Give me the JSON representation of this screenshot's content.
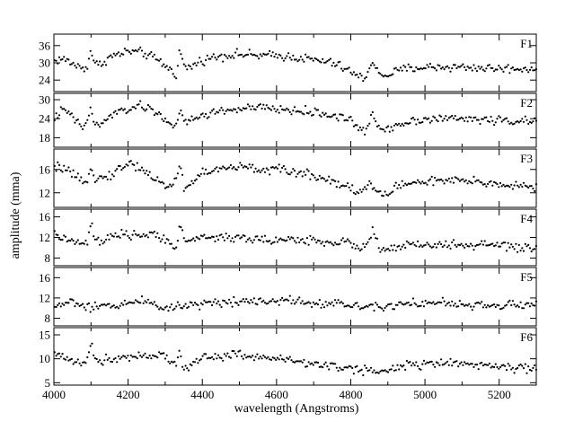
{
  "chart_data": {
    "type": "scatter",
    "xlabel": "wavelength (Angstroms)",
    "ylabel": "amplitude (mma)",
    "xlim": [
      4000,
      5300
    ],
    "xticks": [
      4000,
      4200,
      4400,
      4600,
      4800,
      5000,
      5200
    ],
    "x_minor_step": 100,
    "marker_color": "#000000",
    "grid": false,
    "panels": [
      {
        "label": "F1",
        "ylim": [
          20,
          40
        ],
        "yticks": [
          24,
          30,
          36
        ],
        "x": [
          4000,
          4020,
          4040,
          4060,
          4080,
          4090,
          4100,
          4110,
          4120,
          4150,
          4200,
          4240,
          4280,
          4310,
          4330,
          4340,
          4350,
          4360,
          4400,
          4450,
          4500,
          4550,
          4600,
          4650,
          4700,
          4750,
          4800,
          4820,
          4840,
          4850,
          4860,
          4880,
          4900,
          4950,
          5000,
          5100,
          5200,
          5300
        ],
        "y": [
          30.5,
          31.5,
          30.5,
          29,
          28,
          29,
          34.5,
          30,
          29,
          32,
          34,
          33.5,
          31,
          28,
          26,
          35,
          29,
          28,
          31,
          32.5,
          33,
          32.5,
          32.5,
          32,
          31,
          30,
          27,
          25,
          25,
          28,
          31,
          25,
          26,
          28,
          28.5,
          28.5,
          28,
          28
        ]
      },
      {
        "label": "F2",
        "ylim": [
          15,
          32
        ],
        "yticks": [
          18,
          24,
          30
        ],
        "x": [
          4000,
          4020,
          4040,
          4060,
          4080,
          4090,
          4100,
          4110,
          4130,
          4150,
          4200,
          4230,
          4260,
          4300,
          4330,
          4340,
          4350,
          4360,
          4400,
          4450,
          4500,
          4550,
          4600,
          4650,
          4700,
          4750,
          4800,
          4820,
          4840,
          4850,
          4860,
          4880,
          4900,
          4950,
          5000,
          5100,
          5200,
          5300
        ],
        "y": [
          24,
          26.5,
          26,
          23,
          21,
          24,
          27,
          22,
          22,
          25,
          27,
          28,
          27,
          24,
          21,
          27,
          23,
          23,
          25,
          26.5,
          27,
          27.5,
          27,
          26.5,
          26,
          25,
          24,
          20.5,
          20,
          23,
          25,
          20.5,
          21,
          23,
          24,
          24,
          23.5,
          23
        ]
      },
      {
        "label": "F3",
        "ylim": [
          9.5,
          19.5
        ],
        "yticks": [
          12,
          16
        ],
        "x": [
          4000,
          4020,
          4040,
          4060,
          4080,
          4090,
          4100,
          4110,
          4130,
          4150,
          4200,
          4230,
          4260,
          4290,
          4310,
          4330,
          4340,
          4350,
          4360,
          4400,
          4450,
          4500,
          4550,
          4600,
          4650,
          4700,
          4750,
          4800,
          4820,
          4840,
          4850,
          4870,
          4890,
          4900,
          4920,
          4950,
          5000,
          5100,
          5200,
          5300
        ],
        "y": [
          16,
          16.5,
          15.5,
          14.5,
          13.5,
          14.5,
          17,
          14.5,
          14.5,
          15,
          17,
          16.5,
          15,
          13.5,
          13,
          14.5,
          17,
          13,
          13,
          15.5,
          16,
          16.5,
          16,
          16,
          15.5,
          15,
          14,
          13,
          12,
          12.5,
          14,
          12,
          11.5,
          12,
          13,
          13.5,
          14,
          14,
          13.5,
          13
        ]
      },
      {
        "label": "F4",
        "ylim": [
          6.5,
          17.5
        ],
        "yticks": [
          8,
          12,
          16
        ],
        "x": [
          4000,
          4020,
          4040,
          4060,
          4080,
          4090,
          4100,
          4110,
          4130,
          4150,
          4200,
          4250,
          4300,
          4320,
          4330,
          4340,
          4350,
          4360,
          4400,
          4450,
          4500,
          4550,
          4600,
          4650,
          4700,
          4750,
          4800,
          4820,
          4840,
          4850,
          4860,
          4870,
          4880,
          4900,
          4950,
          5000,
          5100,
          5200,
          5300
        ],
        "y": [
          12.5,
          12,
          11.5,
          11,
          10.5,
          11,
          15,
          11.5,
          11,
          12,
          12.5,
          12.5,
          12,
          10.5,
          10,
          15,
          11,
          11.5,
          12,
          12,
          12,
          11.5,
          11.5,
          11.5,
          11.5,
          11,
          11,
          10,
          10,
          12,
          13.5,
          12,
          9,
          9.5,
          10.5,
          10.5,
          10.5,
          10.5,
          9.5
        ]
      },
      {
        "label": "F5",
        "ylim": [
          6.5,
          18
        ],
        "yticks": [
          8,
          12,
          16
        ],
        "x": [
          4000,
          4030,
          4050,
          4080,
          4100,
          4150,
          4200,
          4250,
          4300,
          4350,
          4400,
          4450,
          4500,
          4550,
          4600,
          4650,
          4700,
          4750,
          4800,
          4850,
          4900,
          4950,
          5000,
          5050,
          5100,
          5150,
          5200,
          5250,
          5300
        ],
        "y": [
          10,
          11,
          11.5,
          10,
          10,
          10.5,
          11,
          11.5,
          10,
          10.5,
          11,
          11,
          11.5,
          11.5,
          11.5,
          11.5,
          11,
          11,
          10.5,
          10.5,
          10.5,
          11,
          11,
          11,
          10.5,
          10.5,
          10.5,
          10.5,
          11
        ]
      },
      {
        "label": "F6",
        "ylim": [
          4.5,
          16.5
        ],
        "yticks": [
          5,
          10,
          15
        ],
        "x": [
          4000,
          4020,
          4040,
          4060,
          4080,
          4090,
          4100,
          4110,
          4130,
          4150,
          4200,
          4250,
          4300,
          4320,
          4330,
          4340,
          4350,
          4360,
          4400,
          4450,
          4500,
          4550,
          4600,
          4650,
          4700,
          4750,
          4800,
          4820,
          4840,
          4850,
          4870,
          4900,
          4950,
          5000,
          5050,
          5100,
          5150,
          5200,
          5250,
          5300
        ],
        "y": [
          11,
          10.5,
          10,
          9.5,
          9,
          10,
          13.5,
          10,
          9.5,
          10,
          10.5,
          11,
          10.5,
          9,
          8.5,
          12,
          8,
          8,
          10.5,
          10.5,
          11,
          10.5,
          10,
          9.5,
          9,
          8.5,
          8,
          7.5,
          7.5,
          8,
          7,
          8,
          8.5,
          9,
          9,
          9,
          8.5,
          8.5,
          8,
          8
        ]
      }
    ]
  }
}
